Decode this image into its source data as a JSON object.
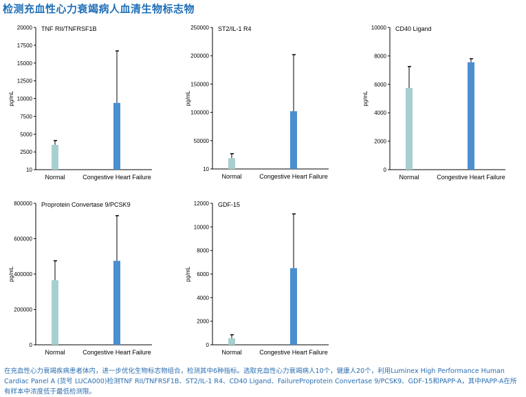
{
  "title": "检测充血性心力衰竭病人血清生物标志物",
  "caption": "在充血性心力衰竭疾病患者体内，进一步优化生物标志物组合，检测其中6种指标。选取充血性心力衰竭病人10个，健康人20个，利用Luminex High Performance Human Cardiac Panel A (货号 LUCA000)检测TNF RII/TNFRSF1B、ST2/IL-1 R4、CD40 Ligand、FailureProprotein Convertase 9/PCSK9、GDF-15和PAPP-A，其中PAPP-A在所有样本中浓度低于最低检测限。",
  "colors": {
    "normal": "#a8cfcf",
    "chf": "#4a8fce"
  },
  "chart_data": [
    {
      "type": "bar",
      "title": "TNF RII/TNFRSF1B",
      "ylabel": "pg/mL",
      "categories": [
        "Normal",
        "Congestive Heart Failure"
      ],
      "values": [
        3500,
        9400
      ],
      "error_upper": [
        4100,
        16700
      ],
      "ylim": [
        10,
        20000
      ],
      "yticks": [
        "10",
        "2500",
        "5000",
        "7500",
        "10000",
        "12500",
        "15000",
        "17500",
        "20000"
      ],
      "ytick_values": [
        10,
        2500,
        5000,
        7500,
        10000,
        12500,
        15000,
        17500,
        20000
      ]
    },
    {
      "type": "bar",
      "title": "ST2/IL-1 R4",
      "ylabel": "pg/mL",
      "categories": [
        "Normal",
        "Congestive Heart Failure"
      ],
      "values": [
        19000,
        102000
      ],
      "error_upper": [
        27000,
        202000
      ],
      "ylim": [
        10,
        250000
      ],
      "yticks": [
        "10",
        "50000",
        "100000",
        "150000",
        "200000",
        "250000"
      ],
      "ytick_values": [
        10,
        50000,
        100000,
        150000,
        200000,
        250000
      ]
    },
    {
      "type": "bar",
      "title": "CD40 Ligand",
      "ylabel": "pg/mL",
      "categories": [
        "Normal",
        "Congestive Heart Failure"
      ],
      "values": [
        5750,
        7550
      ],
      "error_upper": [
        7250,
        7800
      ],
      "ylim": [
        0,
        10000
      ],
      "yticks": [
        "0",
        "2000",
        "4000",
        "6000",
        "8000",
        "10000"
      ],
      "ytick_values": [
        0,
        2000,
        4000,
        6000,
        8000,
        10000
      ]
    },
    {
      "type": "bar",
      "title": "Proprotein Convertase 9/PCSK9",
      "ylabel": "pg/mL",
      "categories": [
        "Normal",
        "Congestive Heart Failure"
      ],
      "values": [
        365000,
        475000
      ],
      "error_upper": [
        475000,
        730000
      ],
      "ylim": [
        0,
        800000
      ],
      "yticks": [
        "0",
        "200000",
        "400000",
        "600000",
        "800000"
      ],
      "ytick_values": [
        0,
        200000,
        400000,
        600000,
        800000
      ]
    },
    {
      "type": "bar",
      "title": "GDF-15",
      "ylabel": "pg/mL",
      "categories": [
        "Normal",
        "Congestive Heart Failure"
      ],
      "values": [
        550,
        6500
      ],
      "error_upper": [
        850,
        11100
      ],
      "ylim": [
        0,
        12000
      ],
      "yticks": [
        "0",
        "2000",
        "4000",
        "6000",
        "8000",
        "10000",
        "12000"
      ],
      "ytick_values": [
        0,
        2000,
        4000,
        6000,
        8000,
        10000,
        12000
      ]
    }
  ]
}
